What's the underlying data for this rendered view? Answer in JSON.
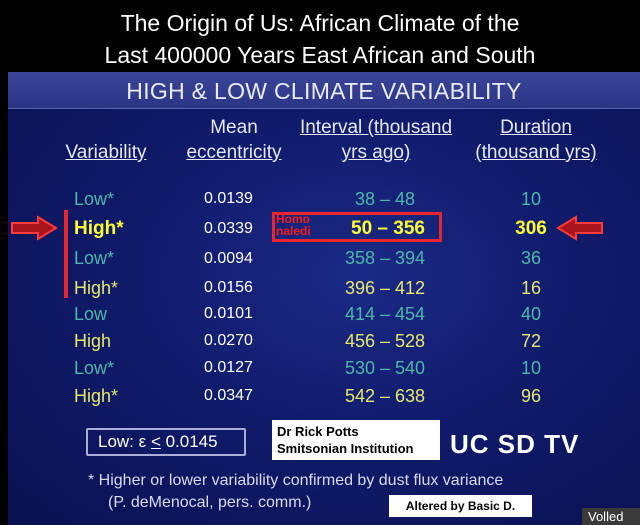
{
  "title": {
    "line1": "The Origin of Us: African Climate of the",
    "line2": "Last 400000 Years East African and South"
  },
  "banner": "HIGH & LOW CLIMATE VARIABILITY",
  "headers": {
    "variability": "Variability",
    "mean_line1": "Mean",
    "mean_line2": "eccentricity",
    "interval_line1": "Interval (thousand",
    "interval_line2": "yrs ago)",
    "duration_line1": "Duration",
    "duration_line2": "(thousand yrs)"
  },
  "rows": [
    {
      "variability": "Low*",
      "eccentricity": "0.0139",
      "interval": "38 – 48",
      "duration": "10"
    },
    {
      "variability": "High*",
      "eccentricity": "0.0339",
      "interval": "50 – 356",
      "duration": "306"
    },
    {
      "variability": "Low*",
      "eccentricity": "0.0094",
      "interval": "358 – 394",
      "duration": "36"
    },
    {
      "variability": "High*",
      "eccentricity": "0.0156",
      "interval": "396 – 412",
      "duration": "16"
    },
    {
      "variability": "Low",
      "eccentricity": "0.0101",
      "interval": "414 – 454",
      "duration": "40"
    },
    {
      "variability": "High",
      "eccentricity": "0.0270",
      "interval": "456 – 528",
      "duration": "72"
    },
    {
      "variability": "Low*",
      "eccentricity": "0.0127",
      "interval": "530 – 540",
      "duration": "10"
    },
    {
      "variability": "High*",
      "eccentricity": "0.0347",
      "interval": "542 – 638",
      "duration": "96"
    }
  ],
  "homo_naledi": {
    "line1": "Homo",
    "line2": "naledi"
  },
  "eps_box": {
    "prefix": "Low:  ε ",
    "leq": "<",
    "value": " 0.0145"
  },
  "credit": {
    "line1": "Dr Rick Potts",
    "line2": "Smitsonian Institution"
  },
  "channel": "UC SD TV",
  "footnote": {
    "line1": "*  Higher or lower variability confirmed by dust flux variance",
    "line2": "(P. deMenocal, pers. comm.)"
  },
  "altered_by": "Altered by Basic D.",
  "corner_text": "Volled",
  "colors": {
    "low": "#4fb7a9",
    "high": "#e7e86b",
    "highlight": "#ffff33",
    "accent_red": "#e8262d",
    "slide_blue": "#101b6b"
  },
  "icons": {
    "left_arrow": "right-arrow-icon",
    "right_arrow": "left-arrow-icon"
  }
}
